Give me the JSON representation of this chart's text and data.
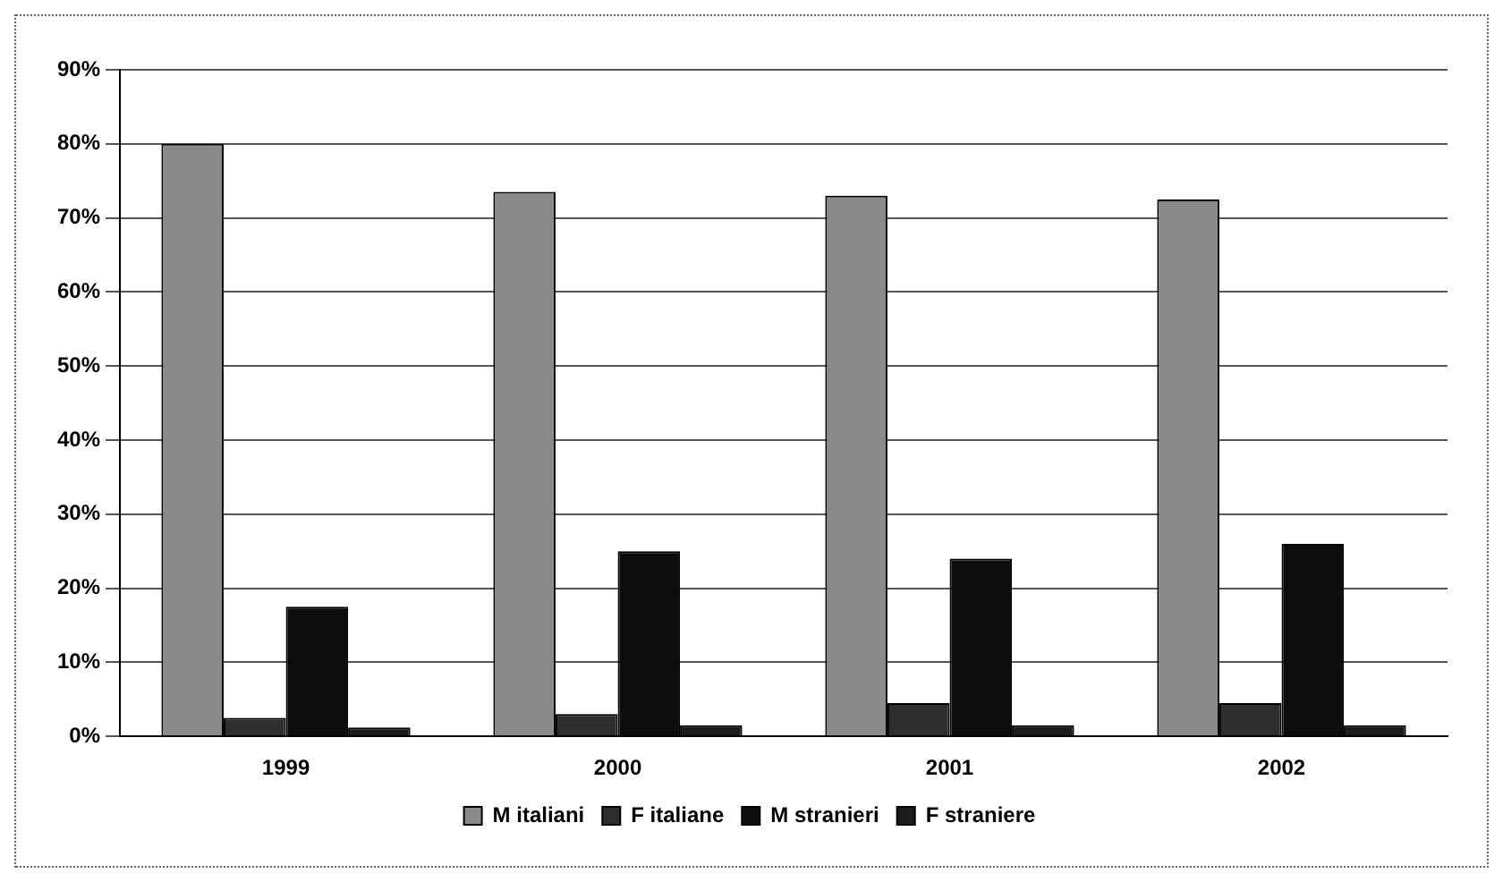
{
  "chart_data": {
    "type": "bar",
    "categories": [
      "1999",
      "2000",
      "2001",
      "2002"
    ],
    "series": [
      {
        "name": "M italiani",
        "color": "#8a8a8a",
        "values": [
          80,
          73.5,
          73,
          72.5
        ]
      },
      {
        "name": "F italiane",
        "color": "#2e2e2e",
        "values": [
          2.5,
          3,
          4.5,
          4.5
        ]
      },
      {
        "name": "M stranieri",
        "color": "#0c0c0c",
        "values": [
          17.5,
          25,
          24,
          26
        ]
      },
      {
        "name": "F straniere",
        "color": "#1c1c1c",
        "values": [
          1.2,
          1.5,
          1.5,
          1.5
        ]
      }
    ],
    "ylim": [
      0,
      90
    ],
    "yticks": [
      {
        "value": 0,
        "label": "0%"
      },
      {
        "value": 10,
        "label": "10%"
      },
      {
        "value": 20,
        "label": "20%"
      },
      {
        "value": 30,
        "label": "30%"
      },
      {
        "value": 40,
        "label": "40%"
      },
      {
        "value": 50,
        "label": "50%"
      },
      {
        "value": 60,
        "label": "60%"
      },
      {
        "value": 70,
        "label": "70%"
      },
      {
        "value": 80,
        "label": "80%"
      },
      {
        "value": 90,
        "label": "90%"
      }
    ],
    "grid": "y",
    "legend": "bottom"
  }
}
